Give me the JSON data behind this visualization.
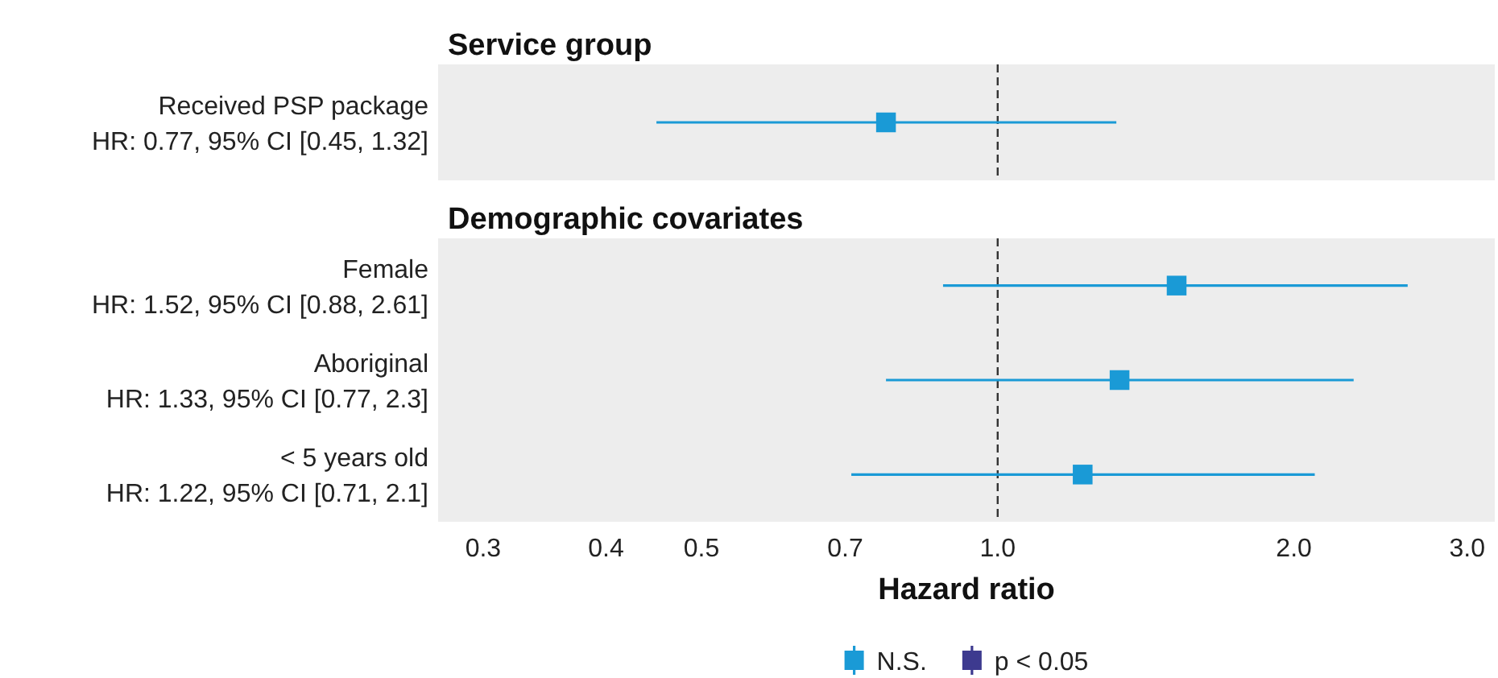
{
  "chart_data": [
    {
      "type": "scatter",
      "title": "Service group",
      "categories": [
        "Received PSP package\nHR: 0.77, 95% CI [0.45, 1.32]"
      ],
      "orientation": "horizontal",
      "log": "x",
      "xlim": [
        0.27,
        3.2
      ],
      "tick_labels": "y",
      "marker": "square",
      "series": [
        {
          "color": "#1a9ad6",
          "values": [
            0.77
          ],
          "errors": [
            [
              0.45,
              1.32
            ]
          ]
        }
      ],
      "ref_lines": [
        {
          "axis": "x",
          "value": 1,
          "line_style": "dashed",
          "color": "#333333"
        }
      ]
    },
    {
      "type": "scatter",
      "title": "Demographic covariates",
      "categories": [
        "Female\nHR: 1.52, 95% CI [0.88, 2.61]",
        "Aboriginal\nHR: 1.33, 95% CI [0.77, 2.3]",
        "< 5 years old\nHR: 1.22, 95% CI [0.71, 2.1]"
      ],
      "orientation": "horizontal",
      "log": "x",
      "xlim": [
        0.27,
        3.2
      ],
      "xticks": [
        {
          "value": 0.3,
          "label": "0.3"
        },
        {
          "value": 0.4,
          "label": "0.4"
        },
        {
          "value": 0.5,
          "label": "0.5"
        },
        {
          "value": 0.7,
          "label": "0.7"
        },
        {
          "value": 1,
          "label": "1.0"
        },
        {
          "value": 2,
          "label": "2.0"
        },
        {
          "value": 3,
          "label": "3.0"
        }
      ],
      "xlabel": "Hazard ratio",
      "marker": "square",
      "legend": "bottom",
      "series": [
        {
          "name": "N.S.",
          "color": "#1a9ad6",
          "values": [
            1.52,
            1.33,
            1.22
          ],
          "errors": [
            [
              0.88,
              2.61
            ],
            [
              0.77,
              2.3
            ],
            [
              0.71,
              2.1
            ]
          ]
        },
        {
          "name": "p < 0.05",
          "color": "#3d3a8f",
          "values": [
            null,
            null,
            null
          ]
        }
      ],
      "ref_lines": [
        {
          "axis": "x",
          "value": 1,
          "line_style": "dashed",
          "color": "#333333"
        }
      ]
    }
  ]
}
